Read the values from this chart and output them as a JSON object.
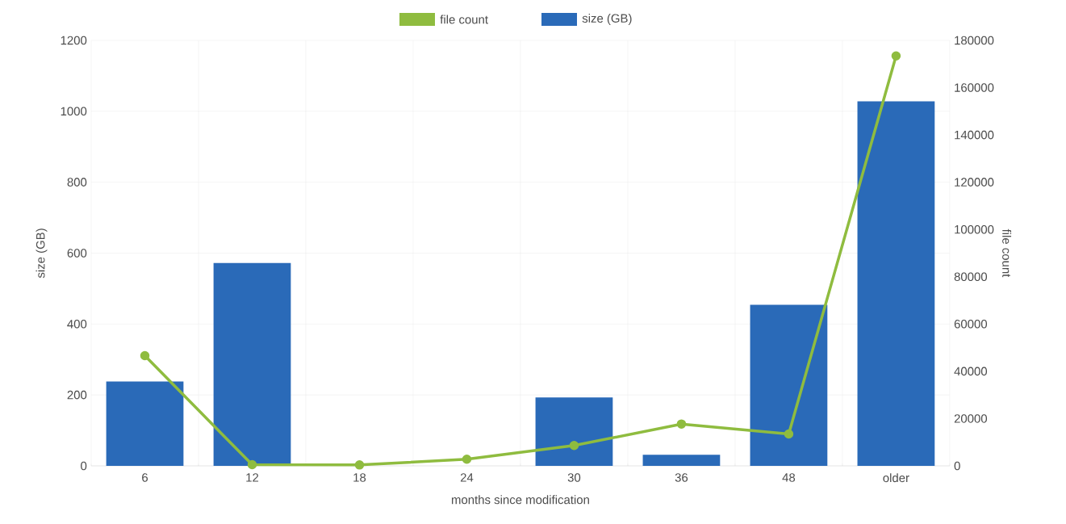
{
  "chart_data": {
    "type": "bar",
    "categories": [
      "6",
      "12",
      "18",
      "24",
      "30",
      "36",
      "48",
      "older"
    ],
    "xlabel": "months since modification",
    "ylabel": "size (GB)",
    "y2label": "file count",
    "ylim": [
      0,
      1200
    ],
    "yticks": [
      0,
      200,
      400,
      600,
      800,
      1000,
      1200
    ],
    "y2lim": [
      0,
      180000
    ],
    "y2ticks": [
      0,
      20000,
      40000,
      60000,
      80000,
      100000,
      120000,
      140000,
      160000,
      180000
    ],
    "grid": true,
    "legend": "top",
    "marker": "circle",
    "series": [
      {
        "name": "file count",
        "type": "line",
        "axis": "y2",
        "color": "#8fbc3f",
        "values": [
          46600,
          500,
          400,
          2800,
          8600,
          17700,
          13500,
          173400
        ]
      },
      {
        "name": "size (GB)",
        "color": "#2a6ab8",
        "values": [
          238,
          572,
          0,
          0,
          193,
          31,
          454,
          1028
        ]
      }
    ]
  }
}
